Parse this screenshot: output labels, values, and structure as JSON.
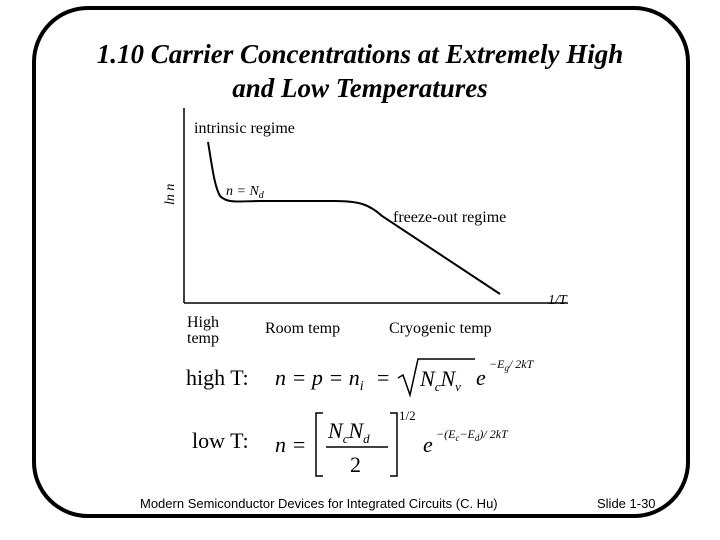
{
  "title": {
    "line1": "1.10   Carrier Concentrations at Extremely High",
    "line2": "and Low Temperatures"
  },
  "diagram": {
    "y_axis_label": "ln n",
    "x_axis_label": "1/T",
    "regime_labels": {
      "intrinsic": "intrinsic regime",
      "extrinsic": "n = N",
      "extrinsic_sub": "d",
      "freeze_out": "freeze-out regime"
    },
    "temperature_labels": {
      "high_line1": "High",
      "high_line2": "temp",
      "room": "Room temp",
      "cryogenic": "Cryogenic temp"
    }
  },
  "equations": {
    "high_label": "high T:",
    "low_label": "low T:",
    "high_lhs": "n = p = n",
    "high_lhs_sub": "i",
    "high_rhs_eq": "=",
    "sqrt_Nc": "N",
    "sqrt_Nc_sub": "c",
    "sqrt_Nv": "N",
    "sqrt_Nv_sub": "v",
    "exp_base": "e",
    "high_exponent": "−E",
    "high_exponent_sub": "g",
    "high_exponent_tail": "/ 2kT",
    "low_lhs": "n =",
    "frac_num_Nc": "N",
    "frac_num_Nc_sub": "c",
    "frac_num_Nd": "N",
    "frac_num_Nd_sub": "d",
    "frac_den": "2",
    "low_power": "1/2",
    "low_exp_base": "e",
    "low_exponent": "−(E",
    "low_exponent_sub1": "c",
    "low_exponent_mid": "−E",
    "low_exponent_sub2": "d",
    "low_exponent_tail": ")/ 2kT"
  },
  "footer": {
    "text": "Modern Semiconductor Devices for Integrated Circuits (C. Hu)",
    "slide": "Slide 1-30"
  }
}
